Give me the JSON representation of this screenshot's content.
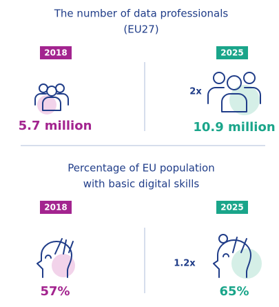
{
  "sections": [
    {
      "title": [
        "The number of data professionals",
        "(EU27)"
      ],
      "left": {
        "year": "2018",
        "value": "5.7 million"
      },
      "right": {
        "year": "2025",
        "multiplier": "2x",
        "value": "10.9 million"
      }
    },
    {
      "title": [
        "Percentage of EU population",
        "with basic digital skills"
      ],
      "left": {
        "year": "2018",
        "value": "57%"
      },
      "right": {
        "year": "2025",
        "multiplier": "1.2x",
        "value": "65%"
      }
    }
  ]
}
